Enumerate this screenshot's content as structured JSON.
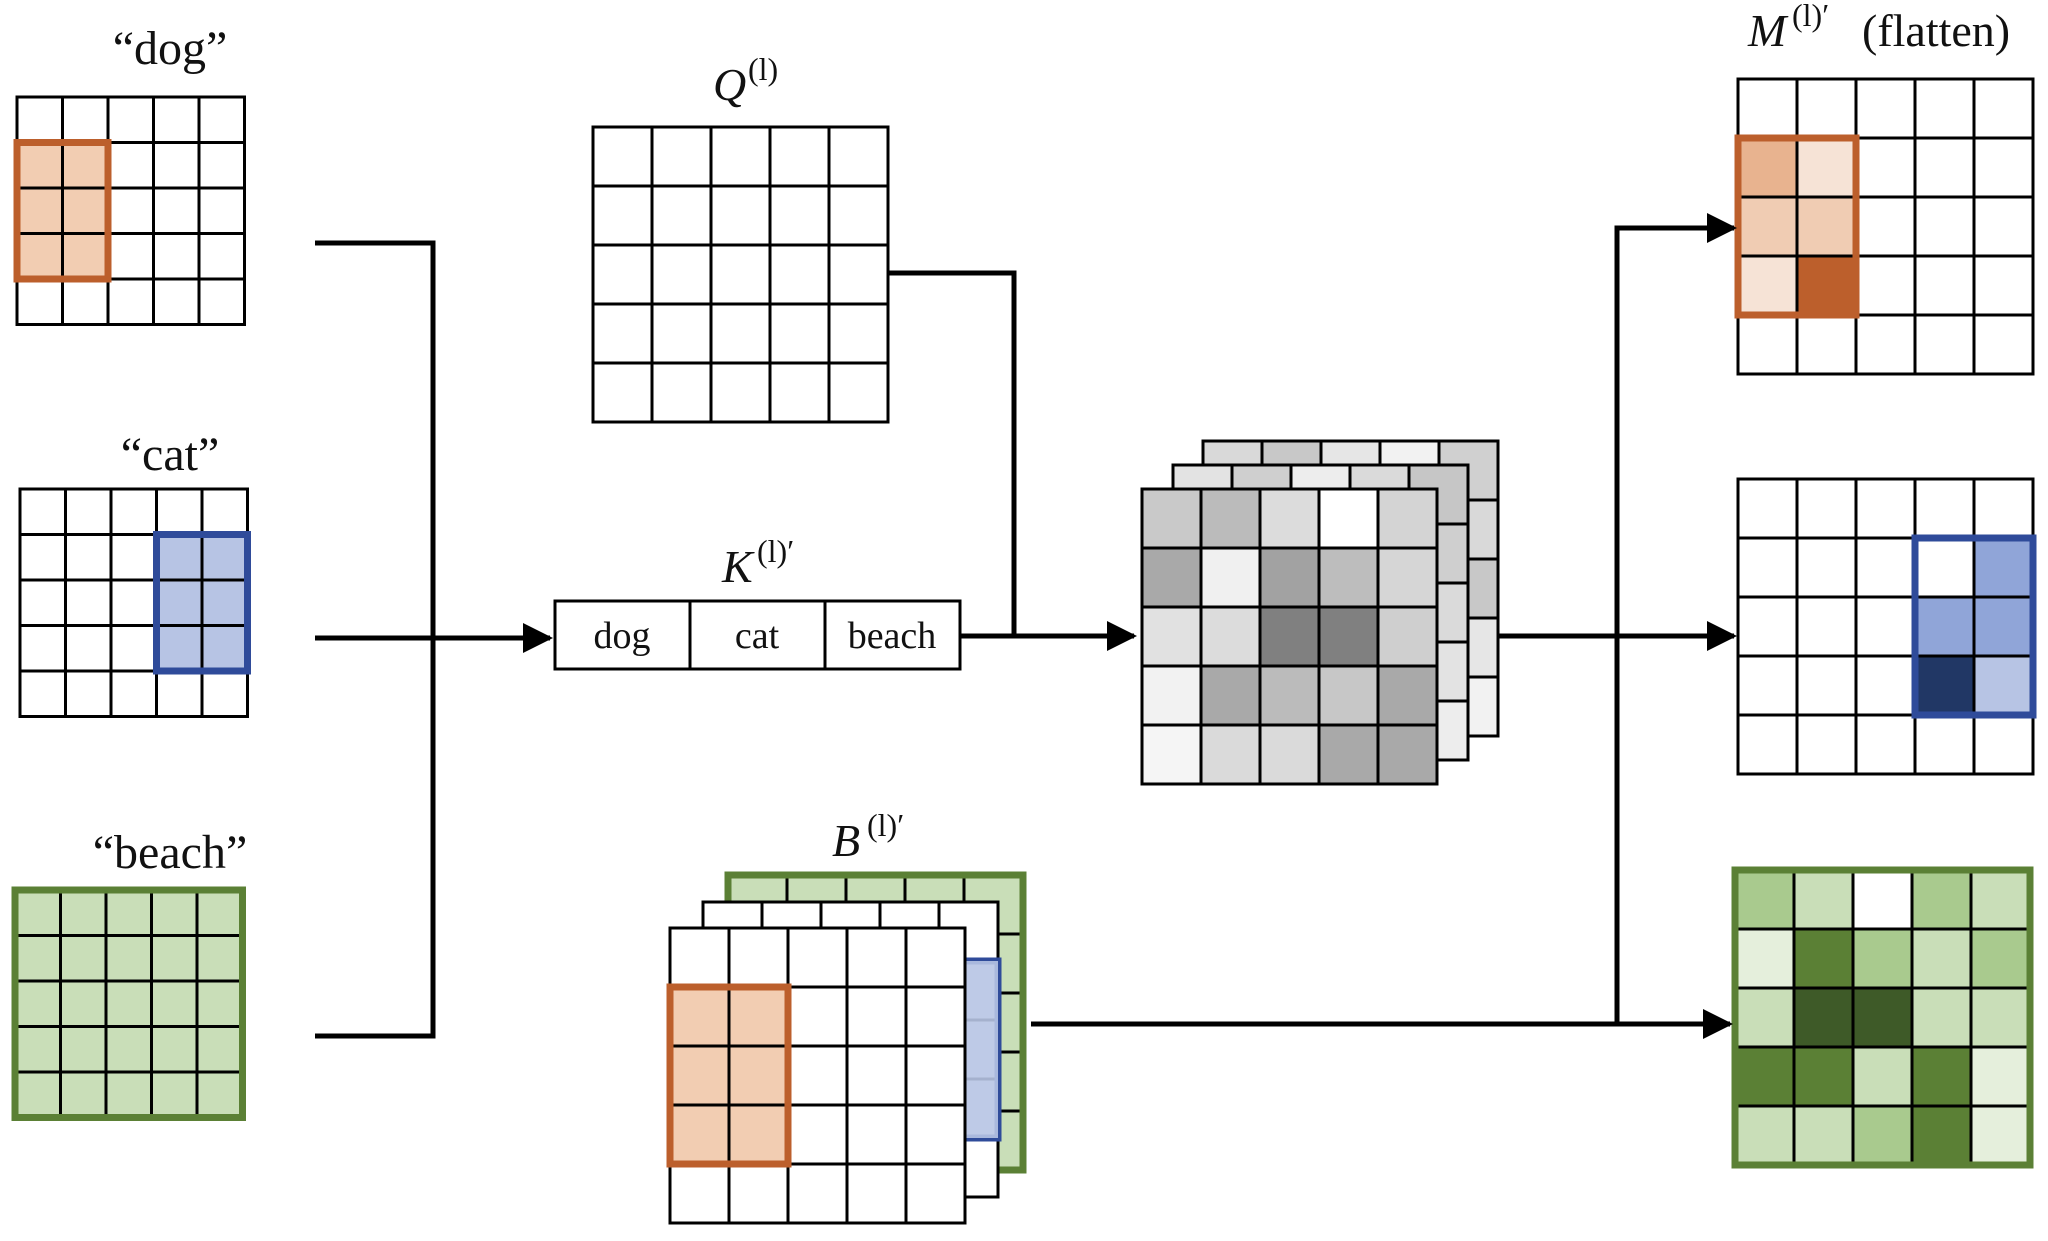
{
  "labels": {
    "dog": "“dog”",
    "cat": "“cat”",
    "beach": "“beach”",
    "q_sym": "Q",
    "q_sup": "(l)",
    "k_sym": "K",
    "k_sup": "(l)′",
    "b_sym": "B",
    "b_sup": "(l)′",
    "m_sym": "M",
    "m_sup": "(l)′",
    "m_suffix": "(flatten)"
  },
  "k_tokens": [
    "dog",
    "cat",
    "beach"
  ],
  "colors": {
    "orange_border": "#BC5F2C",
    "orange_fill": "#F2CDB2",
    "blue_border": "#2F4B9A",
    "blue_fill": "#B7C4E4",
    "green_border": "#5B8035",
    "green_fill": "#C9DEB8",
    "grid_line": "#000000"
  },
  "grids": {
    "size": 5,
    "dog_mask": {
      "highlight_cols": [
        0,
        1
      ],
      "highlight_rows": [
        1,
        2,
        3
      ]
    },
    "cat_mask": {
      "highlight_cols": [
        3,
        4
      ],
      "highlight_rows": [
        1,
        2,
        3
      ]
    },
    "beach_mask": {
      "full": true
    },
    "attention_map": [
      [
        "#C9C9C9",
        "#BBBBBB",
        "#DCDCDC",
        "#FFFFFF",
        "#D4D4D4"
      ],
      [
        "#A9A9A9",
        "#F0F0F0",
        "#A2A2A2",
        "#BDBDBD",
        "#D6D6D6"
      ],
      [
        "#E1E1E1",
        "#DCDCDC",
        "#808080",
        "#808080",
        "#CFCFCF"
      ],
      [
        "#F2F2F2",
        "#A9A9A9",
        "#BBBBBB",
        "#C7C7C7",
        "#A9A9A9"
      ],
      [
        "#F5F5F5",
        "#DADADA",
        "#DADADA",
        "#A9A9A9",
        "#A9A9A9"
      ]
    ],
    "m_dog_cells": [
      [
        "#E8B38F",
        "#F6E3D6"
      ],
      [
        "#F0CCB3",
        "#F0CCB3"
      ],
      [
        "#F6E3D6",
        "#BC5F2C"
      ]
    ],
    "m_cat_cells": [
      [
        "#FFFFFF",
        "#90A5D8"
      ],
      [
        "#90A5D8",
        "#90A5D8"
      ],
      [
        "#213765",
        "#B7C4E4"
      ]
    ],
    "m_beach_cells": [
      [
        "#A9CA8E",
        "#C9DEB8",
        "#FFFFFF",
        "#A9CA8E",
        "#C9DEB8"
      ],
      [
        "#E5EFDC",
        "#5B8035",
        "#A9CA8E",
        "#C9DEB8",
        "#A9CA8E"
      ],
      [
        "#C9DEB8",
        "#3E5A28",
        "#3E5A28",
        "#C9DEB8",
        "#C9DEB8"
      ],
      [
        "#5B8035",
        "#5B8035",
        "#C9DEB8",
        "#5B8035",
        "#E5EFDC"
      ],
      [
        "#C9DEB8",
        "#C9DEB8",
        "#A9CA8E",
        "#5B8035",
        "#E5EFDC"
      ]
    ]
  }
}
